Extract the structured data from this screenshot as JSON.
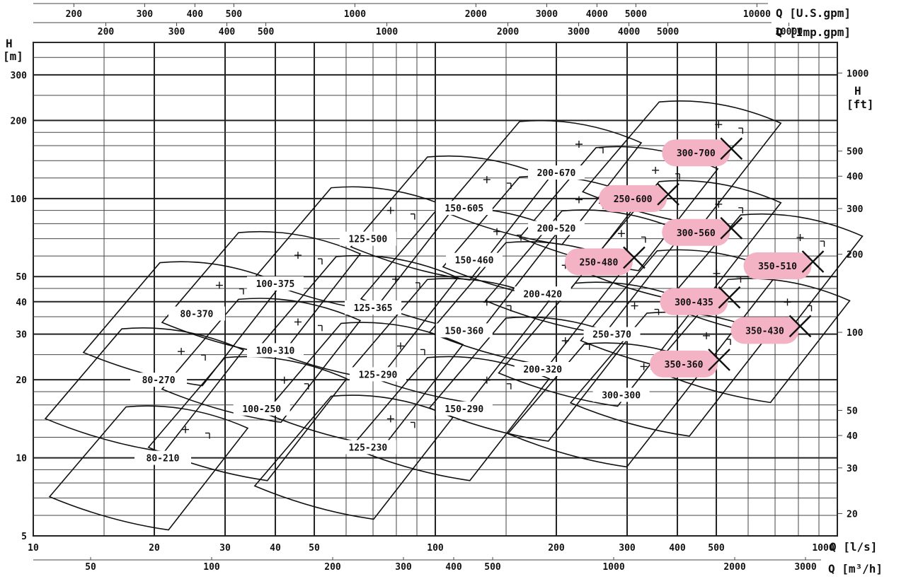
{
  "chart_data": {
    "type": "scatter",
    "title": "",
    "x_scale": "log",
    "y_scale": "log",
    "xlim": [
      10,
      1000
    ],
    "ylim": [
      5,
      400
    ],
    "grid": true,
    "axes": {
      "left": {
        "label_line1": "H",
        "label_line2": "[m]",
        "ticks": [
          5,
          10,
          20,
          30,
          40,
          50,
          100,
          200,
          300
        ]
      },
      "right": {
        "label_line1": "H",
        "label_line2": "[ft]",
        "ticks": [
          20,
          30,
          40,
          50,
          100,
          200,
          300,
          400,
          500,
          1000
        ]
      },
      "bottom1": {
        "label": "Q [l/s]",
        "ticks": [
          10,
          20,
          30,
          40,
          50,
          100,
          200,
          300,
          400,
          500,
          1000
        ]
      },
      "bottom2": {
        "label": "Q [m³/h]",
        "ticks": [
          50,
          100,
          200,
          300,
          400,
          500,
          1000,
          2000,
          3000
        ]
      },
      "top1": {
        "label": "Q [U.S.gpm]",
        "ticks": [
          200,
          300,
          400,
          500,
          1000,
          2000,
          3000,
          4000,
          5000,
          10000
        ]
      },
      "top2": {
        "label": "Q [Imp.gpm]",
        "ticks": [
          200,
          300,
          400,
          500,
          1000,
          2000,
          3000,
          4000,
          5000,
          10000
        ]
      }
    },
    "pumps": [
      {
        "label": "80-210",
        "q": 21,
        "h": 10,
        "highlighted": false
      },
      {
        "label": "80-270",
        "q": 20.5,
        "h": 20,
        "highlighted": false
      },
      {
        "label": "80-370",
        "q": 25.5,
        "h": 36,
        "highlighted": false
      },
      {
        "label": "100-250",
        "q": 37,
        "h": 15.5,
        "highlighted": false
      },
      {
        "label": "100-310",
        "q": 40,
        "h": 26,
        "highlighted": false
      },
      {
        "label": "100-375",
        "q": 40,
        "h": 47,
        "highlighted": false
      },
      {
        "label": "125-230",
        "q": 68,
        "h": 11,
        "highlighted": false
      },
      {
        "label": "125-290",
        "q": 72,
        "h": 21,
        "highlighted": false
      },
      {
        "label": "125-365",
        "q": 70,
        "h": 38,
        "highlighted": false
      },
      {
        "label": "125-500",
        "q": 68,
        "h": 70,
        "highlighted": false
      },
      {
        "label": "150-290",
        "q": 118,
        "h": 15.5,
        "highlighted": false
      },
      {
        "label": "150-360",
        "q": 118,
        "h": 31,
        "highlighted": false
      },
      {
        "label": "150-460",
        "q": 125,
        "h": 58,
        "highlighted": false
      },
      {
        "label": "150-605",
        "q": 118,
        "h": 92,
        "highlighted": false
      },
      {
        "label": "200-320",
        "q": 185,
        "h": 22,
        "highlighted": false
      },
      {
        "label": "200-420",
        "q": 185,
        "h": 43,
        "highlighted": false
      },
      {
        "label": "200-520",
        "q": 200,
        "h": 77,
        "highlighted": false
      },
      {
        "label": "200-670",
        "q": 200,
        "h": 126,
        "highlighted": false
      },
      {
        "label": "250-370",
        "q": 275,
        "h": 30,
        "highlighted": false
      },
      {
        "label": "250-480",
        "q": 255,
        "h": 57,
        "highlighted": true
      },
      {
        "label": "250-600",
        "q": 310,
        "h": 100,
        "highlighted": true
      },
      {
        "label": "300-300",
        "q": 290,
        "h": 17.5,
        "highlighted": false
      },
      {
        "label": "300-435",
        "q": 440,
        "h": 40,
        "highlighted": true
      },
      {
        "label": "300-560",
        "q": 445,
        "h": 74,
        "highlighted": true
      },
      {
        "label": "300-700",
        "q": 445,
        "h": 150,
        "highlighted": true
      },
      {
        "label": "350-360",
        "q": 415,
        "h": 23,
        "highlighted": true
      },
      {
        "label": "350-430",
        "q": 660,
        "h": 31,
        "highlighted": true
      },
      {
        "label": "350-510",
        "q": 710,
        "h": 55,
        "highlighted": true
      }
    ]
  }
}
